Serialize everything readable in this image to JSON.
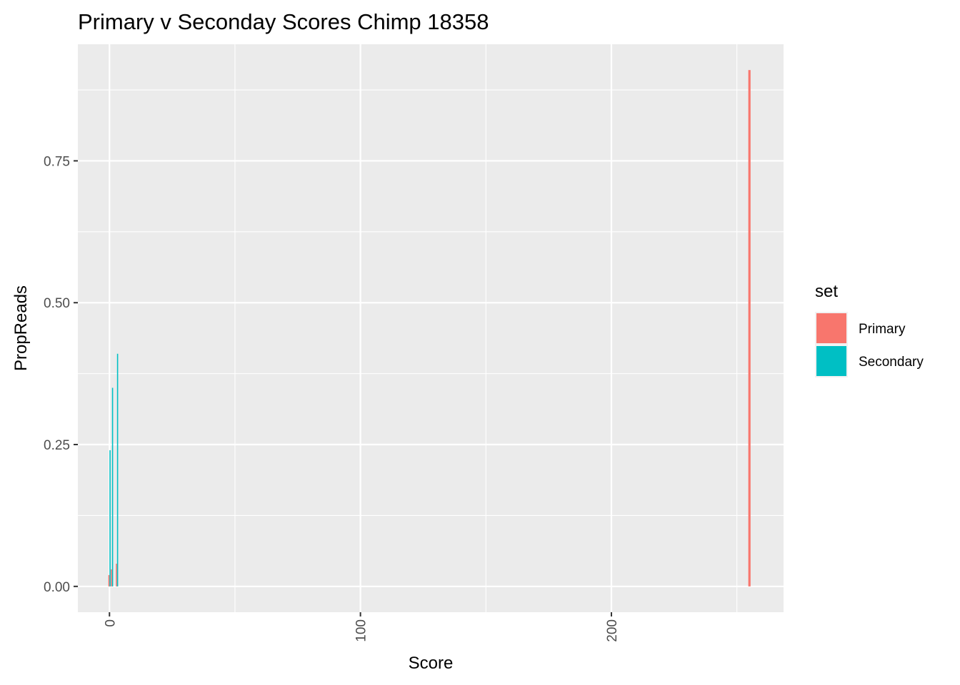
{
  "chart_data": {
    "type": "bar",
    "title": "Primary v Seconday Scores Chimp 18358",
    "xlabel": "Score",
    "ylabel": "PropReads",
    "xlim": [
      -12.6,
      268.6
    ],
    "ylim": [
      -0.0455,
      0.9555
    ],
    "x_ticks": [
      0,
      100,
      200
    ],
    "x_tick_labels": [
      "0",
      "100",
      "200"
    ],
    "x_minor_ticks": [
      50,
      150,
      250
    ],
    "y_ticks": [
      0,
      0.25,
      0.5,
      0.75
    ],
    "y_tick_labels": [
      "0.00",
      "0.25",
      "0.50",
      "0.75"
    ],
    "y_minor_ticks": [
      0.125,
      0.375,
      0.625,
      0.875
    ],
    "x_tick_label_rotation": "vertical",
    "grid": true,
    "legend": {
      "title": "set",
      "position": "right"
    },
    "bar_width": 0.9,
    "dodge": true,
    "series": [
      {
        "name": "Primary",
        "color": "#F8766D",
        "points": [
          {
            "x": 0,
            "y": 0.02
          },
          {
            "x": 1,
            "y": 0.03
          },
          {
            "x": 3,
            "y": 0.04
          },
          {
            "x": 255,
            "y": 0.91
          }
        ]
      },
      {
        "name": "Secondary",
        "color": "#00BFC4",
        "points": [
          {
            "x": 0,
            "y": 0.24
          },
          {
            "x": 1,
            "y": 0.35
          },
          {
            "x": 3,
            "y": 0.41
          }
        ]
      }
    ]
  }
}
